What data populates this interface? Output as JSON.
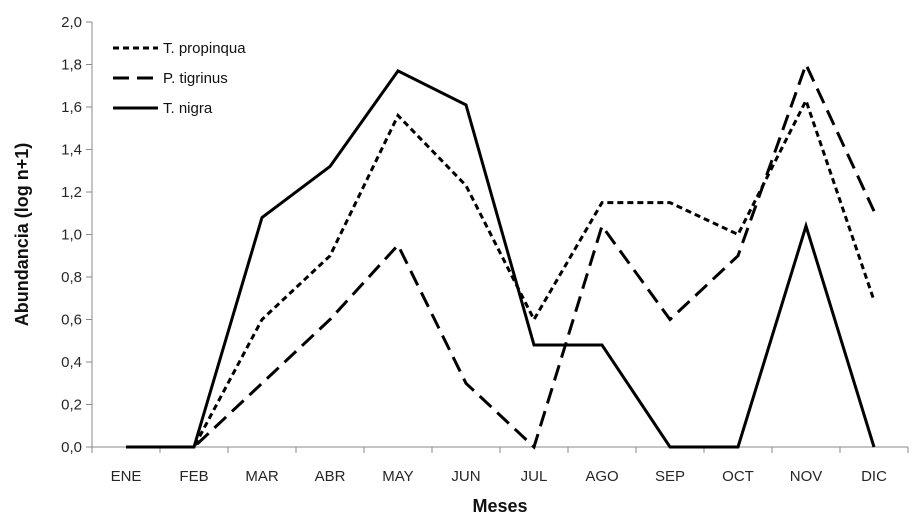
{
  "chart_data": {
    "type": "line",
    "xlabel": "Meses",
    "ylabel": "Abundancia (log n+1)",
    "categories": [
      "ENE",
      "FEB",
      "MAR",
      "ABR",
      "MAY",
      "JUN",
      "JUL",
      "AGO",
      "SEP",
      "OCT",
      "NOV",
      "DIC"
    ],
    "ylim": [
      0,
      2
    ],
    "yticks": [
      "0,0",
      "0,2",
      "0,4",
      "0,6",
      "0,8",
      "1,0",
      "1,2",
      "1,4",
      "1,6",
      "1,8",
      "2,0"
    ],
    "grid": false,
    "legend_position": "top-left",
    "series": [
      {
        "name": "T. propinqua",
        "dash": "dotted",
        "values": [
          0,
          0,
          0.6,
          0.9,
          1.56,
          1.23,
          0.6,
          1.15,
          1.15,
          1.0,
          1.63,
          0.69
        ]
      },
      {
        "name": "P. tigrinus",
        "dash": "dashed",
        "values": [
          0,
          0,
          0.3,
          0.6,
          0.95,
          0.3,
          0,
          1.04,
          0.6,
          0.9,
          1.8,
          1.11
        ]
      },
      {
        "name": "T. nigra",
        "dash": "solid",
        "values": [
          0,
          0,
          1.08,
          1.32,
          1.77,
          1.61,
          0.48,
          0.48,
          0,
          0,
          1.04,
          0
        ]
      }
    ]
  }
}
